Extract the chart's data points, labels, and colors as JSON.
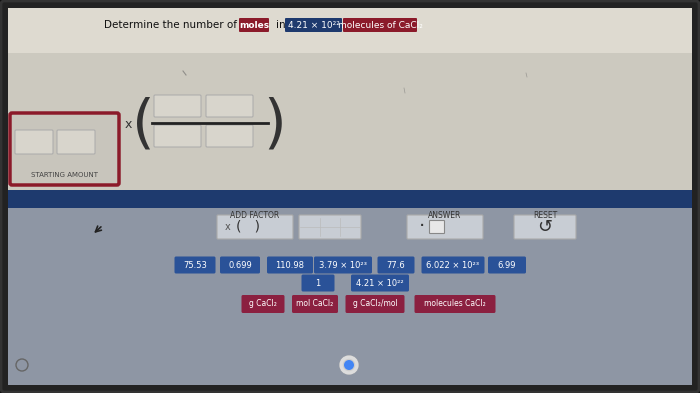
{
  "outer_bg": "#111111",
  "screen_bg_top": "#d8d5cc",
  "screen_bg_bottom": "#9aa0aa",
  "blue_bar_color": "#1e3a6e",
  "title_text": "Determine the number of",
  "title_highlight1": "moles",
  "title_in": "in",
  "title_value": "4.21 × 10²²",
  "title_highlight3": "molecules of CaCl₂",
  "highlight1_color": "#8b1a2a",
  "value_bg": "#1e3a6e",
  "highlight3_color": "#8b1a2a",
  "starting_amount_label": "STARTING AMOUNT",
  "starting_amount_border": "#8b1a2a",
  "add_factor_label": "ADD FACTOR",
  "answer_label": "ANSWER",
  "reset_label": "RESET",
  "number_buttons_blue": [
    "75.53",
    "0.699",
    "110.98",
    "3.79 × 10²³",
    "77.6",
    "6.022 × 10²³",
    "6.99"
  ],
  "number_buttons_row2": [
    "1",
    "4.21 × 10²²"
  ],
  "unit_buttons_red": [
    "g CaCl₂",
    "mol CaCl₂",
    "g CaCl₂/mol",
    "molecules CaCl₂"
  ],
  "button_blue_color": "#2a5298",
  "button_red_color": "#8b2040",
  "white": "#ffffff",
  "dark": "#222222"
}
